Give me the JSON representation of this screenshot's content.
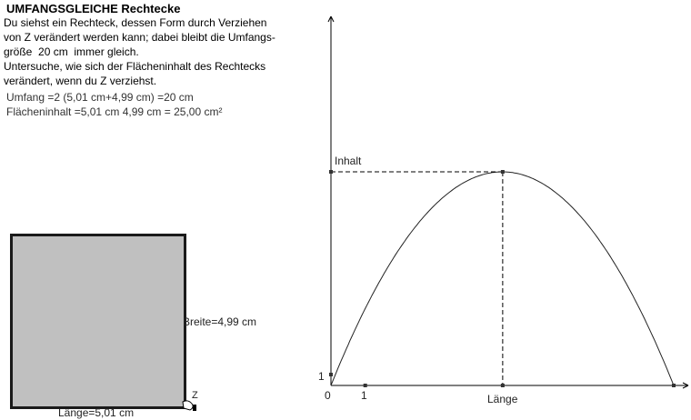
{
  "title": "UMFANGSGLEICHE Rechtecke",
  "description": "Du siehst ein Rechteck, dessen Form durch Verziehen\nvon Z verändert werden kann; dabei bleibt die Umfangs-\ngröße  20 cm  immer gleich.\nUntersuche, wie sich der Flächeninhalt des Rechtecks\nverändert, wenn du Z verziehst.",
  "umfang_text": "Umfang =2 (5,01 cm+4,99 cm) =20 cm",
  "flaeche_text": "Flächeninhalt =5,01 cm 4,99 cm = 25,00 cm²",
  "rectangle": {
    "laenge": 5.01,
    "breite": 4.99,
    "laenge_label": "Länge=5,01 cm",
    "breite_label": "Breite=4,99 cm",
    "point_label": "Z",
    "fill": "#c0c0c0"
  },
  "graph": {
    "y_label": "Inhalt",
    "x_label": "Länge",
    "origin_label": "0",
    "x_tick_label": "1",
    "y_tick_label": "1",
    "umfang": 20,
    "current_x": 5.01,
    "current_y": 25.0
  }
}
